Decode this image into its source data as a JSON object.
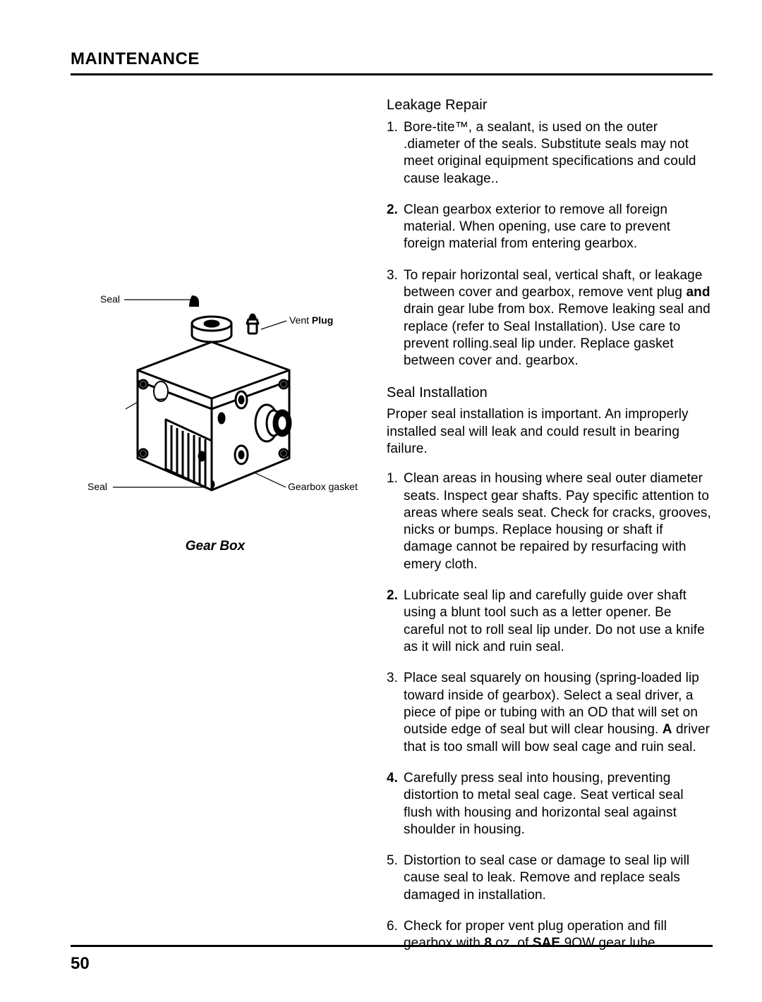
{
  "page": {
    "title": "MAINTENANCE",
    "number": "50"
  },
  "figure": {
    "caption": "Gear Box",
    "labels": {
      "seal_top": "Seal",
      "vent_plug_a": "Vent ",
      "vent_plug_b": "Plug",
      "seal_left": "Seal",
      "gasket": "Gearbox gasket"
    },
    "stroke_color": "#000000",
    "fill_color": "#ffffff",
    "stroke_width_main": 3,
    "stroke_width_thin": 1.2
  },
  "rightCol": {
    "leakage": {
      "heading": "Leakage Repair",
      "items": [
        {
          "num": "1.",
          "html": "Bore-tite™, a sealant, is used on the outer .diameter of the seals. Substitute seals may not meet original equipment specifications and could cause leakage.."
        },
        {
          "num": "2.",
          "numBold": true,
          "html": "Clean gearbox exterior to remove all foreign material. When opening, use care to prevent foreign material from entering gearbox."
        },
        {
          "num": "3.",
          "html": "To repair horizontal seal, vertical shaft, or leakage between cover and gearbox, remove vent plug <span class=\"b\">and</span> drain gear lube from box. Remove leaking seal and replace (refer to Seal Installation). Use care to prevent rolling.seal lip under. Replace gasket between cover and. gearbox."
        }
      ]
    },
    "sealInstall": {
      "heading": "Seal Installation",
      "intro": "Proper seal installation is important. An improperly installed seal will leak and could result in bearing failure.",
      "items": [
        {
          "num": "1.",
          "html": "Clean areas in housing where seal outer diameter seats. Inspect gear shafts. Pay specific attention to areas where seals seat. Check for cracks, grooves, nicks or bumps. Replace housing or shaft if damage cannot be repaired by resurfacing with emery cloth."
        },
        {
          "num": "2.",
          "numBold": true,
          "html": "Lubricate seal lip and carefully guide over shaft using a blunt tool such as a letter opener. Be careful not to roll seal lip under. Do not use a knife as it will nick and ruin seal."
        },
        {
          "num": "3.",
          "html": "Place seal squarely on housing (spring-loaded lip toward inside of gearbox). Select a seal driver, a piece of pipe or tubing with an OD that will set on outside edge of seal but will clear housing. <span class=\"b\">A</span> driver that is too small will bow seal cage and ruin seal."
        },
        {
          "num": "4.",
          "numBold": true,
          "html": "Carefully press seal into housing, preventing distortion to metal seal cage. Seat vertical seal flush with housing and horizontal seal against shoulder in housing."
        },
        {
          "num": "5.",
          "html": "Distortion to seal case or damage to seal lip will cause seal to leak. Remove and replace seals damaged in installation."
        },
        {
          "num": "6.",
          "html": "Check for proper vent plug operation and fill gearbox with <span class=\"b\">8</span> oz. of <span class=\"b\">SAE</span> 9OW gear lube."
        }
      ]
    }
  }
}
